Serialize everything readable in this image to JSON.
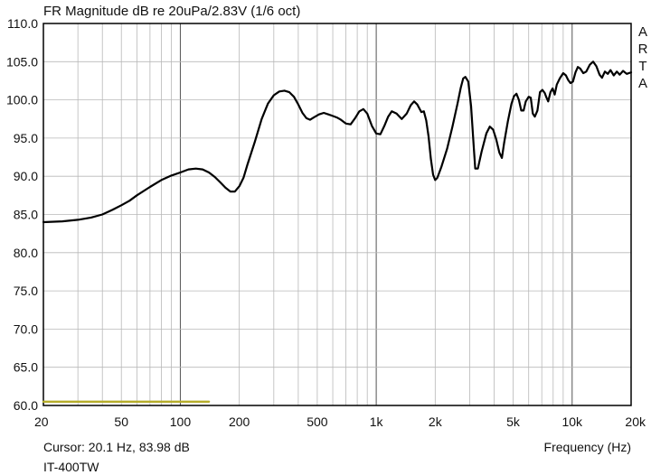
{
  "chart_data": {
    "type": "line",
    "title": "FR Magnitude dB re 20uPa/2.83V (1/6 oct)",
    "xlabel": "Frequency (Hz)",
    "ylabel": "",
    "xscale": "log",
    "xlim": [
      20,
      20000
    ],
    "ylim": [
      60,
      110
    ],
    "grid": true,
    "x_tick_labels": [
      {
        "value": 20,
        "label": "20"
      },
      {
        "value": 50,
        "label": "50"
      },
      {
        "value": 100,
        "label": "100"
      },
      {
        "value": 200,
        "label": "200"
      },
      {
        "value": 500,
        "label": "500"
      },
      {
        "value": 1000,
        "label": "1k"
      },
      {
        "value": 2000,
        "label": "2k"
      },
      {
        "value": 5000,
        "label": "5k"
      },
      {
        "value": 10000,
        "label": "10k"
      },
      {
        "value": 20000,
        "label": "20k"
      }
    ],
    "y_tick_labels": [
      {
        "value": 110,
        "label": "110.0"
      },
      {
        "value": 105,
        "label": "105.0"
      },
      {
        "value": 100,
        "label": "100.0"
      },
      {
        "value": 95,
        "label": "95.0"
      },
      {
        "value": 90,
        "label": "90.0"
      },
      {
        "value": 85,
        "label": "85.0"
      },
      {
        "value": 80,
        "label": "80.0"
      },
      {
        "value": 75,
        "label": "75.0"
      },
      {
        "value": 70,
        "label": "70.0"
      },
      {
        "value": 65,
        "label": "65.0"
      },
      {
        "value": 60,
        "label": "60.0"
      }
    ],
    "series": [
      {
        "color": "#000000",
        "points": [
          [
            20,
            84.0
          ],
          [
            25,
            84.1
          ],
          [
            30,
            84.3
          ],
          [
            35,
            84.6
          ],
          [
            40,
            85.0
          ],
          [
            45,
            85.6
          ],
          [
            50,
            86.2
          ],
          [
            55,
            86.8
          ],
          [
            60,
            87.5
          ],
          [
            70,
            88.6
          ],
          [
            80,
            89.5
          ],
          [
            90,
            90.1
          ],
          [
            100,
            90.5
          ],
          [
            110,
            90.9
          ],
          [
            120,
            91.0
          ],
          [
            130,
            90.9
          ],
          [
            140,
            90.5
          ],
          [
            150,
            89.9
          ],
          [
            160,
            89.2
          ],
          [
            170,
            88.5
          ],
          [
            180,
            88.0
          ],
          [
            190,
            88.0
          ],
          [
            200,
            88.7
          ],
          [
            210,
            89.8
          ],
          [
            220,
            91.5
          ],
          [
            240,
            94.5
          ],
          [
            260,
            97.5
          ],
          [
            280,
            99.5
          ],
          [
            300,
            100.6
          ],
          [
            320,
            101.1
          ],
          [
            340,
            101.2
          ],
          [
            360,
            101.0
          ],
          [
            380,
            100.4
          ],
          [
            400,
            99.4
          ],
          [
            420,
            98.3
          ],
          [
            440,
            97.6
          ],
          [
            460,
            97.4
          ],
          [
            480,
            97.7
          ],
          [
            510,
            98.1
          ],
          [
            540,
            98.3
          ],
          [
            570,
            98.1
          ],
          [
            600,
            97.9
          ],
          [
            630,
            97.7
          ],
          [
            660,
            97.4
          ],
          [
            700,
            96.9
          ],
          [
            740,
            96.8
          ],
          [
            780,
            97.6
          ],
          [
            820,
            98.5
          ],
          [
            860,
            98.8
          ],
          [
            900,
            98.2
          ],
          [
            950,
            96.6
          ],
          [
            1000,
            95.6
          ],
          [
            1050,
            95.5
          ],
          [
            1100,
            96.6
          ],
          [
            1150,
            97.8
          ],
          [
            1200,
            98.5
          ],
          [
            1270,
            98.2
          ],
          [
            1350,
            97.5
          ],
          [
            1430,
            98.2
          ],
          [
            1500,
            99.3
          ],
          [
            1560,
            99.8
          ],
          [
            1620,
            99.4
          ],
          [
            1700,
            98.4
          ],
          [
            1750,
            98.5
          ],
          [
            1800,
            97.3
          ],
          [
            1850,
            95.2
          ],
          [
            1900,
            92.3
          ],
          [
            1950,
            90.2
          ],
          [
            2000,
            89.5
          ],
          [
            2050,
            89.8
          ],
          [
            2150,
            91.2
          ],
          [
            2300,
            93.6
          ],
          [
            2450,
            96.5
          ],
          [
            2600,
            99.5
          ],
          [
            2700,
            101.6
          ],
          [
            2780,
            102.8
          ],
          [
            2850,
            103.0
          ],
          [
            2950,
            102.4
          ],
          [
            3050,
            99.2
          ],
          [
            3150,
            93.6
          ],
          [
            3200,
            91.0
          ],
          [
            3300,
            91.0
          ],
          [
            3450,
            93.2
          ],
          [
            3650,
            95.6
          ],
          [
            3800,
            96.5
          ],
          [
            3950,
            96.1
          ],
          [
            4100,
            94.8
          ],
          [
            4250,
            93.1
          ],
          [
            4380,
            92.4
          ],
          [
            4500,
            94.4
          ],
          [
            4700,
            97.2
          ],
          [
            4900,
            99.5
          ],
          [
            5050,
            100.5
          ],
          [
            5200,
            100.8
          ],
          [
            5350,
            100.0
          ],
          [
            5500,
            98.6
          ],
          [
            5650,
            98.6
          ],
          [
            5800,
            99.8
          ],
          [
            6000,
            100.4
          ],
          [
            6150,
            100.3
          ],
          [
            6300,
            98.2
          ],
          [
            6450,
            97.8
          ],
          [
            6650,
            98.6
          ],
          [
            6850,
            101.0
          ],
          [
            7050,
            101.3
          ],
          [
            7250,
            100.9
          ],
          [
            7400,
            100.3
          ],
          [
            7550,
            99.8
          ],
          [
            7750,
            101.0
          ],
          [
            7950,
            101.5
          ],
          [
            8150,
            100.7
          ],
          [
            8350,
            102.0
          ],
          [
            8650,
            102.8
          ],
          [
            9000,
            103.5
          ],
          [
            9300,
            103.2
          ],
          [
            9550,
            102.6
          ],
          [
            9800,
            102.2
          ],
          [
            10100,
            102.4
          ],
          [
            10400,
            103.6
          ],
          [
            10700,
            104.3
          ],
          [
            11000,
            104.1
          ],
          [
            11400,
            103.5
          ],
          [
            11800,
            103.7
          ],
          [
            12300,
            104.6
          ],
          [
            12800,
            105.0
          ],
          [
            13300,
            104.4
          ],
          [
            13800,
            103.3
          ],
          [
            14200,
            102.9
          ],
          [
            14700,
            103.7
          ],
          [
            15200,
            103.4
          ],
          [
            15700,
            103.9
          ],
          [
            16300,
            103.2
          ],
          [
            16900,
            103.7
          ],
          [
            17500,
            103.3
          ],
          [
            18200,
            103.8
          ],
          [
            19000,
            103.4
          ],
          [
            20000,
            103.6
          ]
        ]
      },
      {
        "color": "#b5ad2a",
        "points": [
          [
            20,
            60.5
          ],
          [
            140,
            60.5
          ]
        ]
      }
    ]
  },
  "cursor_readout": "Cursor: 20.1 Hz, 83.98 dB",
  "device_label": "IT-400TW",
  "brand_letters": [
    "A",
    "R",
    "T",
    "A"
  ]
}
